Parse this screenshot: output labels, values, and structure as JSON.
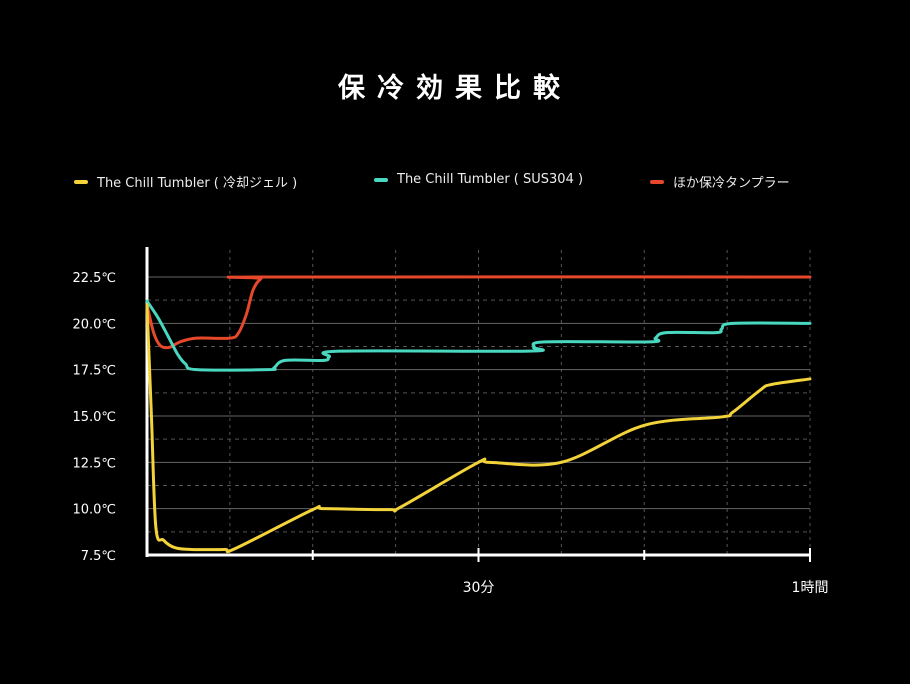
{
  "chart_data": {
    "type": "line",
    "title": "保冷効果比較",
    "xlabel": "",
    "ylabel": "",
    "xlim": [
      0,
      60
    ],
    "ylim": [
      7.5,
      22.5
    ],
    "y_ticks": [
      "7.5℃",
      "10.0℃",
      "12.5℃",
      "15.0℃",
      "17.5℃",
      "20.0℃",
      "22.5℃"
    ],
    "y_tick_values": [
      7.5,
      10,
      12.5,
      15,
      17.5,
      20,
      22.5
    ],
    "x_ticks": [
      {
        "value": 30,
        "label": "30分"
      },
      {
        "value": 60,
        "label": "1時間"
      }
    ],
    "x_minor_ticks": [
      15,
      45
    ],
    "grid": true,
    "legend_position": "top",
    "series": [
      {
        "name": "The Chill Tumbler ( 冷却ジェル )",
        "color": "#f2d33a",
        "x": [
          0,
          0.4,
          0.8,
          1.5,
          2.5,
          4,
          7,
          8,
          15,
          16,
          22,
          23,
          30,
          31,
          37.5,
          45,
          52,
          53,
          55.5,
          56.5,
          60
        ],
        "y": [
          21,
          15,
          9,
          8.3,
          7.9,
          7.8,
          7.8,
          7.85,
          9.95,
          10,
          9.95,
          10.1,
          12.5,
          12.5,
          12.5,
          14.5,
          14.95,
          15.2,
          16.4,
          16.7,
          17
        ]
      },
      {
        "name": "The Chill Tumbler ( SUS304 )",
        "color": "#4ad7c0",
        "x": [
          0,
          1,
          2,
          2.8,
          3.5,
          4.5,
          11,
          11.5,
          12.5,
          16,
          16.5,
          17.5,
          34.5,
          35,
          36,
          45.5,
          46,
          47,
          51.5,
          52,
          53,
          60
        ],
        "y": [
          21.2,
          20.3,
          19.2,
          18.3,
          17.8,
          17.5,
          17.5,
          17.6,
          18,
          18,
          18.2,
          18.5,
          18.5,
          18.7,
          19,
          19,
          19.2,
          19.5,
          19.5,
          19.7,
          20,
          20
        ]
      },
      {
        "name": "ほか保冷タンプラー",
        "color": "#e5482a",
        "x": [
          0,
          0.6,
          1.2,
          2,
          3,
          4.5,
          7.5,
          8.3,
          9,
          9.6,
          10.3,
          11.2,
          60
        ],
        "y": [
          21,
          19.5,
          18.8,
          18.7,
          19,
          19.2,
          19.2,
          19.5,
          20.5,
          21.8,
          22.4,
          22.5,
          22.5
        ]
      }
    ]
  }
}
